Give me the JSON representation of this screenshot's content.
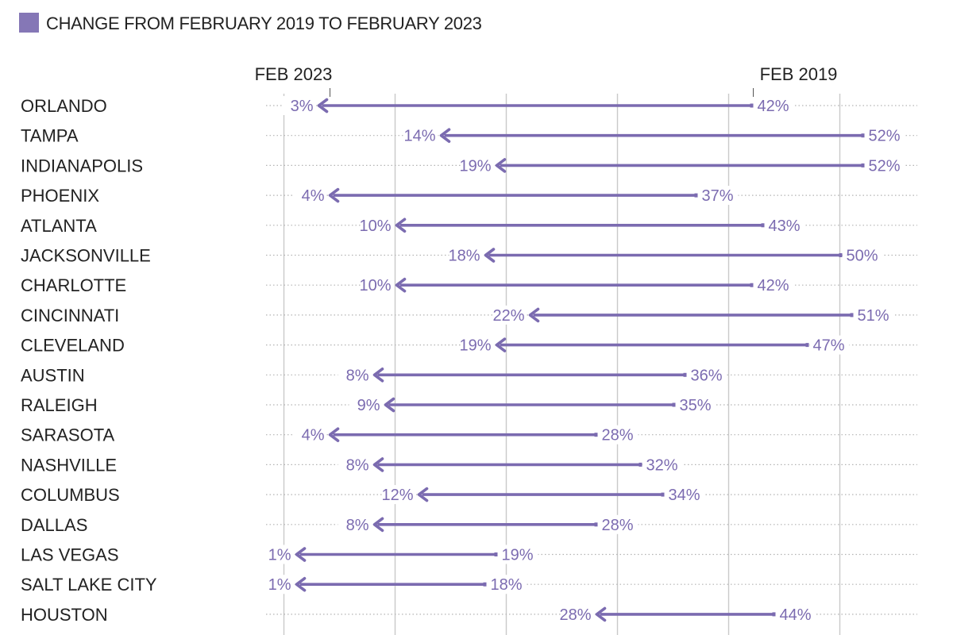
{
  "legend": {
    "label": "CHANGE FROM FEBRUARY 2019 TO FEBRUARY 2023",
    "swatch_color": "#8577b6"
  },
  "headers": {
    "end": "FEB 2023",
    "start": "FEB 2019"
  },
  "colors": {
    "arrow": "#7b6bb0",
    "value_text": "#7b6bb0",
    "grid": "#c9c9c9",
    "dotted": "#b3b3b3",
    "label": "#222222"
  },
  "chart_data": {
    "type": "arrow",
    "unit": "%",
    "xlim": [
      0,
      55
    ],
    "grid": true,
    "categories": [
      "ORLANDO",
      "TAMPA",
      "INDIANAPOLIS",
      "PHOENIX",
      "ATLANTA",
      "JACKSONVILLE",
      "CHARLOTTE",
      "CINCINNATI",
      "CLEVELAND",
      "AUSTIN",
      "RALEIGH",
      "SARASOTA",
      "NASHVILLE",
      "COLUMBUS",
      "DALLAS",
      "LAS VEGAS",
      "SALT LAKE CITY",
      "HOUSTON"
    ],
    "series": [
      {
        "name": "FEB 2019",
        "values": [
          42,
          52,
          52,
          37,
          43,
          50,
          42,
          51,
          47,
          36,
          35,
          28,
          32,
          34,
          28,
          19,
          18,
          44
        ]
      },
      {
        "name": "FEB 2023",
        "values": [
          3,
          14,
          19,
          4,
          10,
          18,
          10,
          22,
          19,
          8,
          9,
          4,
          8,
          12,
          8,
          1,
          1,
          28
        ]
      }
    ],
    "value_labels": {
      "start": [
        "42%",
        "52%",
        "52%",
        "37%",
        "43%",
        "50%",
        "42%",
        "51%",
        "47%",
        "36%",
        "35%",
        "28%",
        "32%",
        "34%",
        "28%",
        "19%",
        "18%",
        "44%"
      ],
      "end": [
        "3%",
        "14%",
        "19%",
        "4%",
        "10%",
        "18%",
        "10%",
        "22%",
        "19%",
        "8%",
        "9%",
        "4%",
        "8%",
        "12%",
        "8%",
        "1%",
        "1%",
        "28%"
      ]
    }
  }
}
